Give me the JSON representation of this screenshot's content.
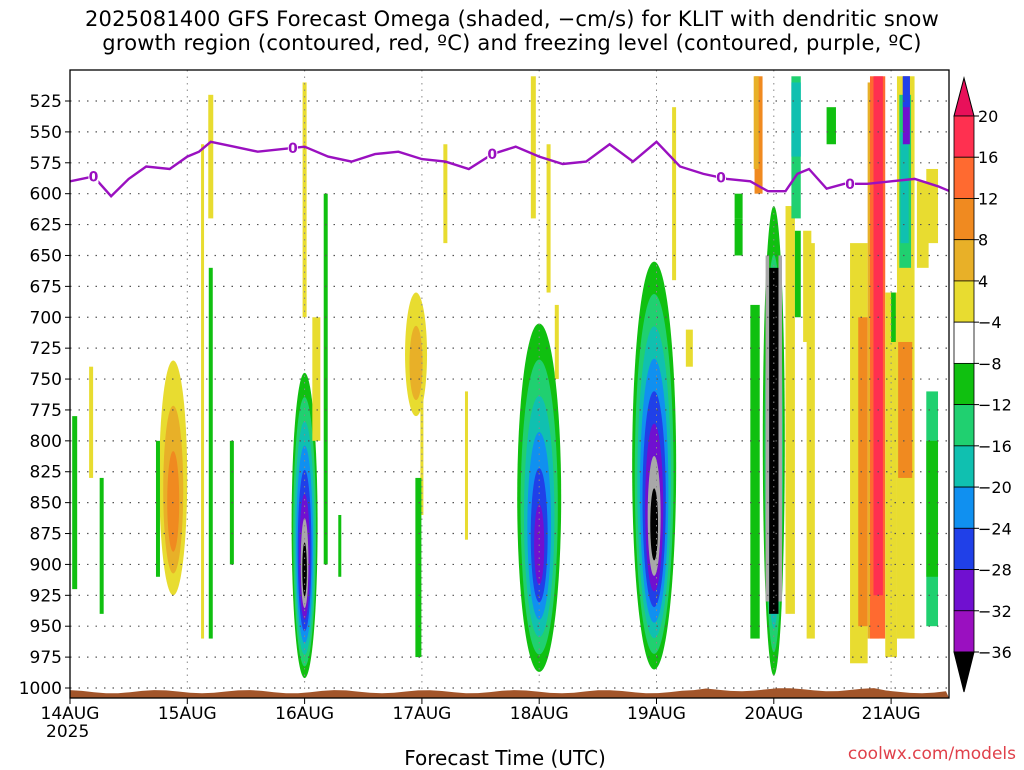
{
  "chart_data": {
    "type": "heatmap",
    "title": "2025081400 GFS Forecast Omega (shaded, −cm/s) for KLIT with dendritic snow",
    "subtitle": "growth region (contoured, red, ºC) and freezing level (contoured, purple, ºC)",
    "xlabel": "Forecast Time (UTC)",
    "ylabel": "",
    "x_ticks": [
      "14AUG",
      "15AUG",
      "16AUG",
      "17AUG",
      "18AUG",
      "19AUG",
      "20AUG",
      "21AUG"
    ],
    "x_year_label": "2025",
    "x_range": [
      "14AUG 00Z",
      "21AUG ~12Z"
    ],
    "y_ticks": [
      525,
      550,
      575,
      600,
      625,
      650,
      675,
      700,
      725,
      750,
      775,
      800,
      825,
      850,
      875,
      900,
      925,
      950,
      975,
      1000
    ],
    "y_range": [
      1010,
      505
    ],
    "y_units": "hPa",
    "grid": true,
    "colorbar": {
      "levels": [
        20,
        16,
        12,
        8,
        4,
        -4,
        -8,
        -12,
        -16,
        -20,
        -24,
        -28,
        -32,
        -36
      ],
      "colors": [
        "#ff3050",
        "#ff6a30",
        "#f08a20",
        "#e8b028",
        "#e8dc30",
        "#ffffff",
        "#10c010",
        "#20d070",
        "#10c0b0",
        "#1090f0",
        "#2040e8",
        "#7010d0",
        "#9a10c0",
        "#a8a8a8",
        "#000000"
      ],
      "top_arrow_color": "#e8105a",
      "bottom_arrow_color": "#000000"
    },
    "freezing_level": {
      "value_label": "0",
      "color": "#9a10c0",
      "series_days": [
        0.0,
        0.2,
        0.35,
        0.5,
        0.65,
        0.85,
        1.0,
        1.1,
        1.2,
        1.4,
        1.6,
        1.8,
        2.0,
        2.2,
        2.4,
        2.6,
        2.8,
        3.0,
        3.2,
        3.4,
        3.6,
        3.8,
        4.0,
        4.2,
        4.4,
        4.6,
        4.8,
        5.0,
        5.2,
        5.4,
        5.6,
        5.8,
        5.95,
        6.1,
        6.2,
        6.3,
        6.45,
        6.6,
        6.8,
        7.0,
        7.2,
        7.4,
        7.5
      ],
      "series_hpa": [
        590,
        586,
        602,
        588,
        578,
        580,
        570,
        566,
        558,
        562,
        566,
        564,
        562,
        570,
        574,
        568,
        566,
        572,
        574,
        580,
        568,
        562,
        570,
        576,
        574,
        560,
        574,
        558,
        578,
        584,
        588,
        590,
        598,
        598,
        584,
        580,
        596,
        592,
        592,
        590,
        588,
        594,
        598
      ]
    },
    "vertical_motion_events": [
      {
        "day": 2.0,
        "level_top": 750,
        "level_bottom": 990,
        "min_value": -36
      },
      {
        "day": 4.0,
        "level_top": 710,
        "level_bottom": 985,
        "min_value": -28
      },
      {
        "day": 5.0,
        "level_top": 660,
        "level_bottom": 985,
        "min_value": -36
      },
      {
        "day": 6.0,
        "level_top": 620,
        "level_bottom": 985,
        "min_value": -36
      },
      {
        "day": 7.0,
        "level_top": 510,
        "level_bottom": 960,
        "max_value": 20
      }
    ],
    "credit": "coolwx.com/models",
    "zero_label_days": [
      0.2,
      1.9,
      3.6,
      5.55,
      6.65
    ]
  }
}
